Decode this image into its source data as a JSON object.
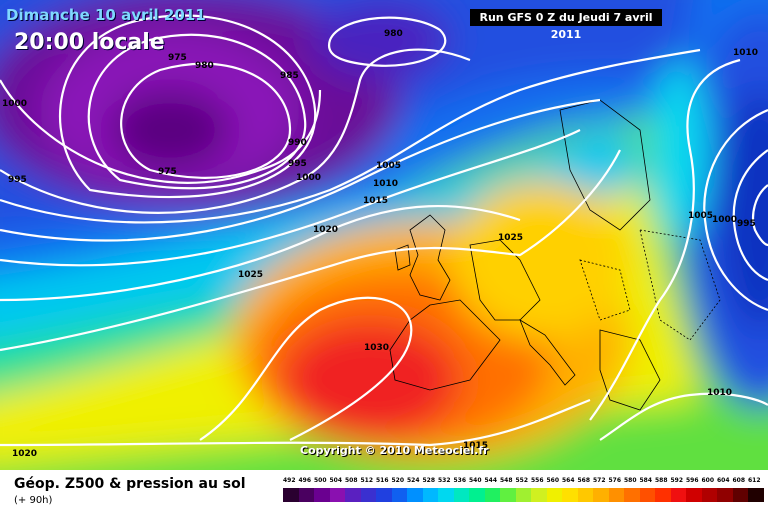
{
  "header": {
    "date": "Dimanche 10 avril 2011",
    "time": "20:00 locale",
    "run": "Run GFS 0 Z du Jeudi 7 avril 2011"
  },
  "copyright": "Copyright © 2010 Meteociel.fr",
  "footer": {
    "title": "Géop. Z500 & pression au sol",
    "lead_time": "(+ 90h)"
  },
  "legend": {
    "ticks": [
      "492",
      "496",
      "500",
      "504",
      "508",
      "512",
      "516",
      "520",
      "524",
      "528",
      "532",
      "536",
      "540",
      "544",
      "548",
      "552",
      "556",
      "560",
      "564",
      "568",
      "572",
      "576",
      "580",
      "584",
      "588",
      "592",
      "596",
      "600",
      "604",
      "608",
      "612"
    ],
    "colors": [
      "#2a0030",
      "#4a0060",
      "#6a0090",
      "#8a10b0",
      "#5a20c0",
      "#3a30d0",
      "#2040e0",
      "#1060f0",
      "#0090ff",
      "#00b8ff",
      "#00d8f0",
      "#00e8c0",
      "#00f090",
      "#20f060",
      "#60f040",
      "#a0f030",
      "#d0f020",
      "#f0f000",
      "#ffe000",
      "#ffc800",
      "#ffb000",
      "#ff9000",
      "#ff7000",
      "#ff5000",
      "#ff3000",
      "#f01010",
      "#d00000",
      "#b00000",
      "#900000",
      "#600000",
      "#200000"
    ]
  },
  "isobars": [
    {
      "label": "975"
    },
    {
      "label": "980"
    },
    {
      "label": "980"
    },
    {
      "label": "985"
    },
    {
      "label": "990"
    },
    {
      "label": "995"
    },
    {
      "label": "1000"
    },
    {
      "label": "1005"
    },
    {
      "label": "1010"
    },
    {
      "label": "1015"
    },
    {
      "label": "1020"
    },
    {
      "label": "1025"
    },
    {
      "label": "1025"
    },
    {
      "label": "1030"
    },
    {
      "label": "1015"
    },
    {
      "label": "1010"
    },
    {
      "label": "1005"
    },
    {
      "label": "1000"
    },
    {
      "label": "995"
    },
    {
      "label": "1010"
    },
    {
      "label": "1000"
    },
    {
      "label": "995"
    },
    {
      "label": "975"
    },
    {
      "label": "1020"
    }
  ]
}
